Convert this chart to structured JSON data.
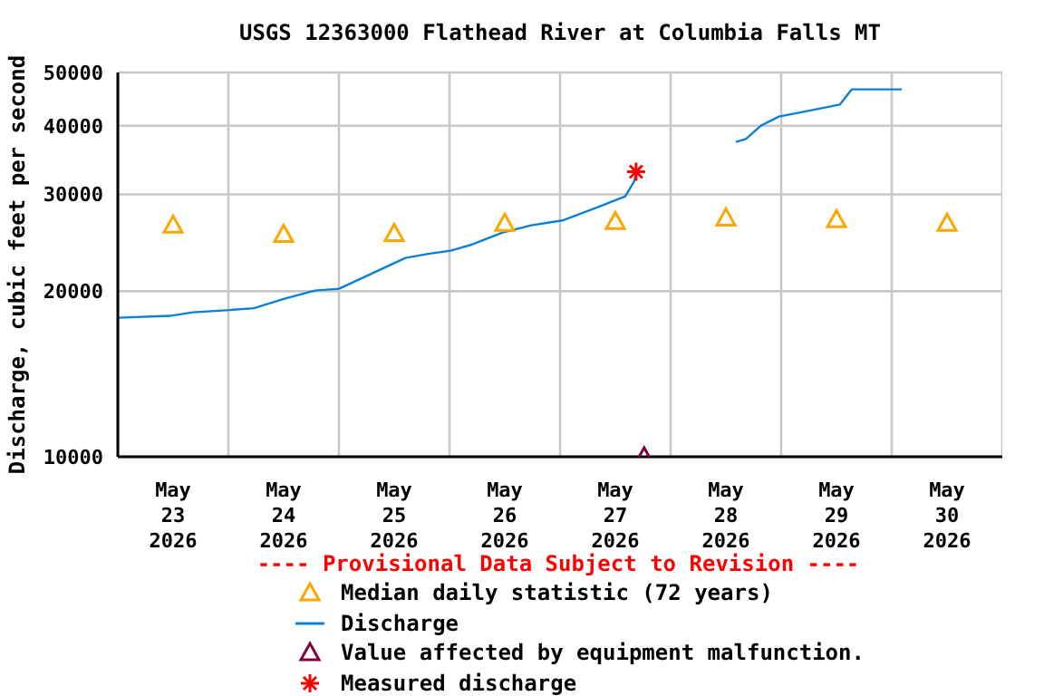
{
  "chart_data": {
    "type": "line",
    "title": "USGS 12363000 Flathead River at Columbia Falls MT",
    "ylabel": "Discharge, cubic feet per second",
    "xlim": [
      "2026-05-23T00:00",
      "2026-05-31T00:00"
    ],
    "xticks": [
      {
        "value": "2026-05-23T00:00",
        "label": null
      },
      {
        "value": "2026-05-23T12:00",
        "label": "May\n23\n2026"
      },
      {
        "value": "2026-05-24T00:00",
        "label": null
      },
      {
        "value": "2026-05-24T12:00",
        "label": "May\n24\n2026"
      },
      {
        "value": "2026-05-25T00:00",
        "label": null
      },
      {
        "value": "2026-05-25T12:00",
        "label": "May\n25\n2026"
      },
      {
        "value": "2026-05-26T00:00",
        "label": null
      },
      {
        "value": "2026-05-26T12:00",
        "label": "May\n26\n2026"
      },
      {
        "value": "2026-05-27T00:00",
        "label": null
      },
      {
        "value": "2026-05-27T12:00",
        "label": "May\n27\n2026"
      },
      {
        "value": "2026-05-28T00:00",
        "label": null
      },
      {
        "value": "2026-05-28T12:00",
        "label": "May\n28\n2026"
      },
      {
        "value": "2026-05-29T00:00",
        "label": null
      },
      {
        "value": "2026-05-29T12:00",
        "label": "May\n29\n2026"
      },
      {
        "value": "2026-05-30T00:00",
        "label": null
      },
      {
        "value": "2026-05-30T12:00",
        "label": "May\n30\n2026"
      },
      {
        "value": "2026-05-31T00:00",
        "label": null
      }
    ],
    "ylim": [
      10000,
      50000
    ],
    "yticks": [
      10000,
      20000,
      30000,
      40000,
      50000
    ],
    "log": "y",
    "grid": true,
    "legend": "bottom",
    "annotations": [
      "---- Provisional Data Subject to Revision ----"
    ],
    "series": [
      {
        "name": "Median daily statistic (72 years)",
        "type": "scatter",
        "marker": "triangle",
        "color": "#ffa500",
        "x": [
          "2026-05-23T12:00",
          "2026-05-24T12:00",
          "2026-05-25T12:00",
          "2026-05-26T12:00",
          "2026-05-27T12:00",
          "2026-05-28T12:00",
          "2026-05-29T12:00",
          "2026-05-30T12:00"
        ],
        "values": [
          26400,
          25400,
          25500,
          26600,
          26800,
          27200,
          27000,
          26600
        ]
      },
      {
        "name": "Discharge",
        "marker": "none",
        "color": "#0a7fd4",
        "x": [
          "2026-05-23T00:00",
          "2026-05-23T11:15",
          "2026-05-23T16:20",
          "2026-05-24T00:15",
          "2026-05-24T05:30",
          "2026-05-24T12:00",
          "2026-05-24T18:45",
          "2026-05-25T00:00",
          "2026-05-25T06:30",
          "2026-05-25T14:25",
          "2026-05-25T19:40",
          "2026-05-26T00:15",
          "2026-05-26T04:50",
          "2026-05-26T11:30",
          "2026-05-26T17:45",
          "2026-05-27T00:30",
          "2026-05-27T08:10",
          "2026-05-27T14:10",
          "2026-05-27T16:05",
          "2026-05-27T16:30",
          "2026-05-28T04:00",
          "2026-05-28T14:10",
          "2026-05-28T16:20",
          "2026-05-28T19:40",
          "2026-05-28T23:30",
          "2026-05-29T04:50",
          "2026-05-29T12:45",
          "2026-05-29T15:20",
          "2026-05-30T02:10"
        ],
        "values": [
          17900,
          18040,
          18310,
          18490,
          18630,
          19360,
          20060,
          20210,
          21410,
          23000,
          23410,
          23710,
          24310,
          25570,
          26360,
          26900,
          28450,
          29770,
          31700,
          32760,
          null,
          37380,
          37840,
          40050,
          41570,
          42410,
          43720,
          46590,
          46590
        ]
      },
      {
        "name": "Value affected by equipment malfunction.",
        "type": "scatter",
        "marker": "triangle",
        "color": "#7f003f",
        "x": [
          "2026-05-27T18:15"
        ],
        "values": [
          10000
        ]
      },
      {
        "name": "Measured discharge",
        "type": "scatter",
        "marker": "cross",
        "color": "#ff0000",
        "x": [
          "2026-05-27T16:30"
        ],
        "values": [
          33000
        ]
      }
    ]
  }
}
